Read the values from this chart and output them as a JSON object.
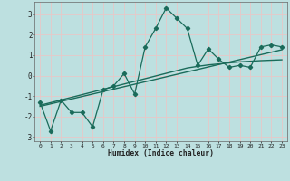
{
  "xlabel": "Humidex (Indice chaleur)",
  "bg_color": "#bde0e0",
  "grid_color": "#e8c8c8",
  "line_color": "#1a6b5a",
  "xlim_min": -0.5,
  "xlim_max": 23.5,
  "ylim_min": -3.2,
  "ylim_max": 3.6,
  "yticks": [
    -3,
    -2,
    -1,
    0,
    1,
    2,
    3
  ],
  "xticks": [
    0,
    1,
    2,
    3,
    4,
    5,
    6,
    7,
    8,
    9,
    10,
    11,
    12,
    13,
    14,
    15,
    16,
    17,
    18,
    19,
    20,
    21,
    22,
    23
  ],
  "x_data": [
    0,
    1,
    2,
    3,
    4,
    5,
    6,
    7,
    8,
    9,
    10,
    11,
    12,
    13,
    14,
    15,
    16,
    17,
    18,
    19,
    20,
    21,
    22,
    23
  ],
  "y_main": [
    -1.3,
    -2.7,
    -1.2,
    -1.8,
    -1.8,
    -2.5,
    -0.7,
    -0.5,
    0.1,
    -0.9,
    1.4,
    2.3,
    3.3,
    2.8,
    2.3,
    0.5,
    1.3,
    0.8,
    0.4,
    0.5,
    0.4,
    1.4,
    1.5,
    1.4
  ],
  "y_trend1": [
    -1.45,
    -1.32,
    -1.19,
    -1.06,
    -0.93,
    -0.8,
    -0.67,
    -0.54,
    -0.41,
    -0.28,
    -0.15,
    -0.02,
    0.11,
    0.24,
    0.37,
    0.45,
    0.52,
    0.57,
    0.62,
    0.67,
    0.7,
    0.73,
    0.75,
    0.77
  ],
  "y_trend2": [
    -1.5,
    -1.38,
    -1.26,
    -1.14,
    -1.02,
    -0.9,
    -0.78,
    -0.66,
    -0.54,
    -0.42,
    -0.3,
    -0.18,
    -0.06,
    0.06,
    0.18,
    0.3,
    0.42,
    0.54,
    0.66,
    0.78,
    0.9,
    1.02,
    1.14,
    1.26
  ]
}
